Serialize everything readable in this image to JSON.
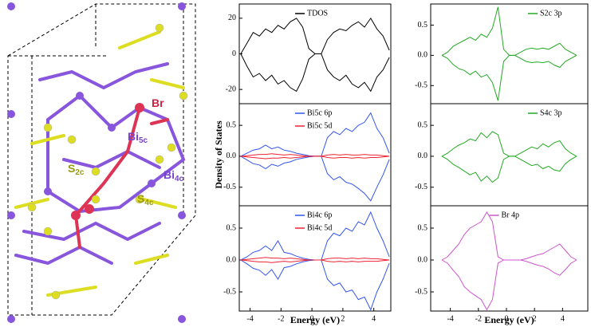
{
  "structure": {
    "labels": [
      {
        "base": "Br",
        "sub": null
      },
      {
        "base": "Bi",
        "sub": "5c"
      },
      {
        "base": "S",
        "sub": "2c"
      },
      {
        "base": "Bi",
        "sub": "4c"
      },
      {
        "base": "S",
        "sub": "4c"
      }
    ]
  },
  "chart_data": [
    {
      "type": "line",
      "column": "left",
      "legend": "upper center",
      "x": [
        -4.6,
        -4.2,
        -3.8,
        -3.4,
        -3.0,
        -2.6,
        -2.2,
        -1.8,
        -1.4,
        -1.0,
        -0.6,
        -0.2,
        0.2,
        0.6,
        1.0,
        1.4,
        1.8,
        2.2,
        2.6,
        3.0,
        3.4,
        3.8,
        4.2,
        4.6,
        5.0
      ],
      "xlim": [
        -4.7,
        5.1
      ],
      "ylim": [
        -28,
        28
      ],
      "yticks": [
        20,
        0,
        -20
      ],
      "series": [
        {
          "name": "TDOS",
          "color": "#000000",
          "values": [
            0,
            6,
            12,
            10,
            14,
            12,
            16,
            14,
            18,
            20,
            15,
            3,
            0,
            0,
            8,
            12,
            14,
            13,
            16,
            18,
            15,
            20,
            14,
            10,
            2
          ],
          "values_down": [
            0,
            -7,
            -13,
            -11,
            -15,
            -12,
            -17,
            -15,
            -19,
            -21,
            -14,
            -3,
            0,
            0,
            -9,
            -13,
            -15,
            -12,
            -17,
            -19,
            -16,
            -21,
            -13,
            -9,
            -2
          ]
        }
      ]
    },
    {
      "type": "line",
      "column": "left",
      "legend": "upper center",
      "ylabel": "Density of States",
      "x": [
        -4.6,
        -4.2,
        -3.8,
        -3.4,
        -3.0,
        -2.6,
        -2.2,
        -1.8,
        -1.4,
        -1.0,
        -0.6,
        -0.2,
        0.2,
        0.6,
        1.0,
        1.4,
        1.8,
        2.2,
        2.6,
        3.0,
        3.4,
        3.8,
        4.2,
        4.6,
        5.0
      ],
      "xlim": [
        -4.7,
        5.1
      ],
      "ylim": [
        -0.8,
        0.85
      ],
      "yticks": [
        {
          "value": 0.5,
          "label": "0.5"
        },
        {
          "value": 0,
          "label": "0.0"
        },
        {
          "value": -0.5,
          "label": "-0.5"
        }
      ],
      "series": [
        {
          "name": "Bi5c 6p",
          "color": "#3355ee",
          "values": [
            0,
            0.05,
            0.1,
            0.12,
            0.18,
            0.12,
            0.15,
            0.1,
            0.08,
            0.05,
            0.03,
            0.01,
            0,
            0,
            0.3,
            0.4,
            0.35,
            0.45,
            0.4,
            0.5,
            0.55,
            0.7,
            0.45,
            0.3,
            0.05
          ],
          "values_down": [
            0,
            -0.06,
            -0.12,
            -0.14,
            -0.2,
            -0.13,
            -0.16,
            -0.11,
            -0.09,
            -0.05,
            -0.03,
            -0.01,
            0,
            0,
            -0.28,
            -0.38,
            -0.33,
            -0.42,
            -0.45,
            -0.52,
            -0.6,
            -0.72,
            -0.5,
            -0.3,
            -0.05
          ]
        },
        {
          "name": "Bi5c 5d",
          "color": "#ee2233",
          "values": [
            0,
            0.01,
            0.02,
            0.03,
            0.03,
            0.04,
            0.03,
            0.02,
            0.03,
            0.02,
            0.01,
            0,
            0,
            0,
            0.02,
            0.03,
            0.02,
            0.03,
            0.02,
            0.02,
            0.03,
            0.02,
            0.02,
            0.01,
            0
          ],
          "values_down": [
            0,
            -0.01,
            -0.02,
            -0.03,
            -0.04,
            -0.03,
            -0.03,
            -0.02,
            -0.03,
            -0.02,
            -0.01,
            0,
            0,
            0,
            -0.02,
            -0.03,
            -0.02,
            -0.02,
            -0.03,
            -0.02,
            -0.03,
            -0.02,
            -0.02,
            -0.01,
            0
          ]
        }
      ]
    },
    {
      "type": "line",
      "column": "left",
      "legend": "upper center",
      "xlabel": "Energy (eV)",
      "x": [
        -4.6,
        -4.2,
        -3.8,
        -3.4,
        -3.0,
        -2.6,
        -2.2,
        -1.8,
        -1.4,
        -1.0,
        -0.6,
        -0.2,
        0.2,
        0.6,
        1.0,
        1.4,
        1.8,
        2.2,
        2.6,
        3.0,
        3.4,
        3.8,
        4.2,
        4.6,
        5.0
      ],
      "xlim": [
        -4.7,
        5.1
      ],
      "ylim": [
        -0.8,
        0.85
      ],
      "xticks": [
        -4,
        -2,
        0,
        2,
        4
      ],
      "yticks": [
        {
          "value": 0.5,
          "label": "0.5"
        },
        {
          "value": 0,
          "label": "0.0"
        },
        {
          "value": -0.5,
          "label": "-0.5"
        }
      ],
      "series": [
        {
          "name": "Bi4c 6p",
          "color": "#3355ee",
          "values": [
            0,
            0.05,
            0.12,
            0.15,
            0.22,
            0.15,
            0.3,
            0.12,
            0.1,
            0.06,
            0.03,
            0.01,
            0,
            0,
            0.3,
            0.42,
            0.38,
            0.5,
            0.45,
            0.6,
            0.55,
            0.75,
            0.5,
            0.3,
            0.05
          ],
          "values_down": [
            0,
            -0.06,
            -0.13,
            -0.16,
            -0.24,
            -0.15,
            -0.3,
            -0.12,
            -0.1,
            -0.06,
            -0.03,
            -0.01,
            0,
            0,
            -0.3,
            -0.4,
            -0.36,
            -0.5,
            -0.47,
            -0.62,
            -0.58,
            -0.78,
            -0.5,
            -0.3,
            -0.05
          ]
        },
        {
          "name": "Bi4c 5d",
          "color": "#ee2233",
          "values": [
            0,
            0.01,
            0.02,
            0.03,
            0.04,
            0.03,
            0.03,
            0.02,
            0.03,
            0.02,
            0.01,
            0,
            0,
            0,
            0.02,
            0.03,
            0.03,
            0.02,
            0.03,
            0.02,
            0.03,
            0.02,
            0.02,
            0.01,
            0
          ],
          "values_down": [
            0,
            -0.01,
            -0.02,
            -0.03,
            -0.03,
            -0.04,
            -0.03,
            -0.02,
            -0.03,
            -0.02,
            -0.01,
            0,
            0,
            0,
            -0.02,
            -0.03,
            -0.02,
            -0.03,
            -0.02,
            -0.03,
            -0.02,
            -0.02,
            -0.02,
            -0.01,
            0
          ]
        }
      ]
    },
    {
      "type": "line",
      "column": "right",
      "legend": "upper right",
      "x": [
        -4.6,
        -4.2,
        -3.8,
        -3.4,
        -3.0,
        -2.6,
        -2.2,
        -1.8,
        -1.4,
        -1.0,
        -0.6,
        -0.2,
        0.2,
        0.6,
        1.0,
        1.4,
        1.8,
        2.2,
        2.6,
        3.0,
        3.4,
        3.8,
        4.2,
        4.6,
        5.0
      ],
      "xlim": [
        -5.4,
        5.8
      ],
      "ylim": [
        -0.8,
        0.85
      ],
      "yticks": [
        {
          "value": 0.5,
          "label": "0.5"
        },
        {
          "value": 0,
          "label": "0.0"
        },
        {
          "value": -0.5,
          "label": "-0.5"
        }
      ],
      "series": [
        {
          "name": "S2c 3p",
          "color": "#22aa22",
          "values": [
            0,
            0.05,
            0.15,
            0.2,
            0.25,
            0.3,
            0.25,
            0.35,
            0.3,
            0.45,
            0.8,
            0.1,
            0,
            0,
            0.05,
            0.1,
            0.12,
            0.1,
            0.12,
            0.1,
            0.15,
            0.2,
            0.1,
            0.05,
            0
          ],
          "values_down": [
            0,
            -0.05,
            -0.15,
            -0.22,
            -0.25,
            -0.32,
            -0.26,
            -0.36,
            -0.32,
            -0.45,
            -0.75,
            -0.1,
            0,
            0,
            -0.05,
            -0.1,
            -0.12,
            -0.11,
            -0.12,
            -0.1,
            -0.16,
            -0.2,
            -0.1,
            -0.05,
            0
          ]
        }
      ]
    },
    {
      "type": "line",
      "column": "right",
      "legend": "upper right",
      "x": [
        -4.6,
        -4.2,
        -3.8,
        -3.4,
        -3.0,
        -2.6,
        -2.2,
        -1.8,
        -1.4,
        -1.0,
        -0.6,
        -0.2,
        0.2,
        0.6,
        1.0,
        1.4,
        1.8,
        2.2,
        2.6,
        3.0,
        3.4,
        3.8,
        4.2,
        4.6,
        5.0
      ],
      "xlim": [
        -5.4,
        5.8
      ],
      "ylim": [
        -0.8,
        0.85
      ],
      "yticks": [
        {
          "value": 0.5,
          "label": "0.5"
        },
        {
          "value": 0,
          "label": "0.0"
        },
        {
          "value": -0.5,
          "label": "-0.5"
        }
      ],
      "series": [
        {
          "name": "S4c 3p",
          "color": "#22aa22",
          "values": [
            0,
            0.05,
            0.12,
            0.18,
            0.22,
            0.28,
            0.25,
            0.38,
            0.3,
            0.4,
            0.35,
            0.05,
            0,
            0,
            0.05,
            0.1,
            0.15,
            0.12,
            0.2,
            0.15,
            0.22,
            0.25,
            0.12,
            0.05,
            0
          ],
          "values_down": [
            0,
            -0.05,
            -0.13,
            -0.18,
            -0.24,
            -0.3,
            -0.26,
            -0.4,
            -0.32,
            -0.42,
            -0.35,
            -0.05,
            0,
            0,
            -0.05,
            -0.1,
            -0.15,
            -0.13,
            -0.2,
            -0.16,
            -0.22,
            -0.24,
            -0.12,
            -0.05,
            0
          ]
        }
      ]
    },
    {
      "type": "line",
      "column": "right",
      "legend": "upper center",
      "xlabel": "Energy (eV)",
      "x": [
        -4.6,
        -4.2,
        -3.8,
        -3.4,
        -3.0,
        -2.6,
        -2.2,
        -1.8,
        -1.4,
        -1.0,
        -0.6,
        -0.2,
        0.2,
        0.6,
        1.0,
        1.4,
        1.8,
        2.2,
        2.6,
        3.0,
        3.4,
        3.8,
        4.2,
        4.6,
        5.0
      ],
      "xlim": [
        -5.4,
        5.8
      ],
      "ylim": [
        -0.8,
        0.85
      ],
      "xticks": [
        -4,
        -2,
        0,
        2,
        4
      ],
      "yticks": [
        {
          "value": 0.5,
          "label": "0.5"
        },
        {
          "value": 0,
          "label": "0.0"
        },
        {
          "value": -0.5,
          "label": "-0.5"
        }
      ],
      "series": [
        {
          "name": "Br 4p",
          "color": "#cc55cc",
          "values": [
            0,
            0.05,
            0.15,
            0.25,
            0.4,
            0.5,
            0.55,
            0.6,
            0.75,
            0.6,
            0.05,
            0,
            0,
            0,
            0,
            0.02,
            0.05,
            0.08,
            0.1,
            0.15,
            0.2,
            0.25,
            0.15,
            0.05,
            0
          ],
          "values_down": [
            0,
            -0.05,
            -0.16,
            -0.26,
            -0.42,
            -0.5,
            -0.56,
            -0.62,
            -0.78,
            -0.62,
            -0.05,
            0,
            0,
            0,
            0,
            -0.02,
            -0.05,
            -0.08,
            -0.1,
            -0.14,
            -0.2,
            -0.24,
            -0.15,
            -0.05,
            0
          ]
        }
      ]
    }
  ]
}
